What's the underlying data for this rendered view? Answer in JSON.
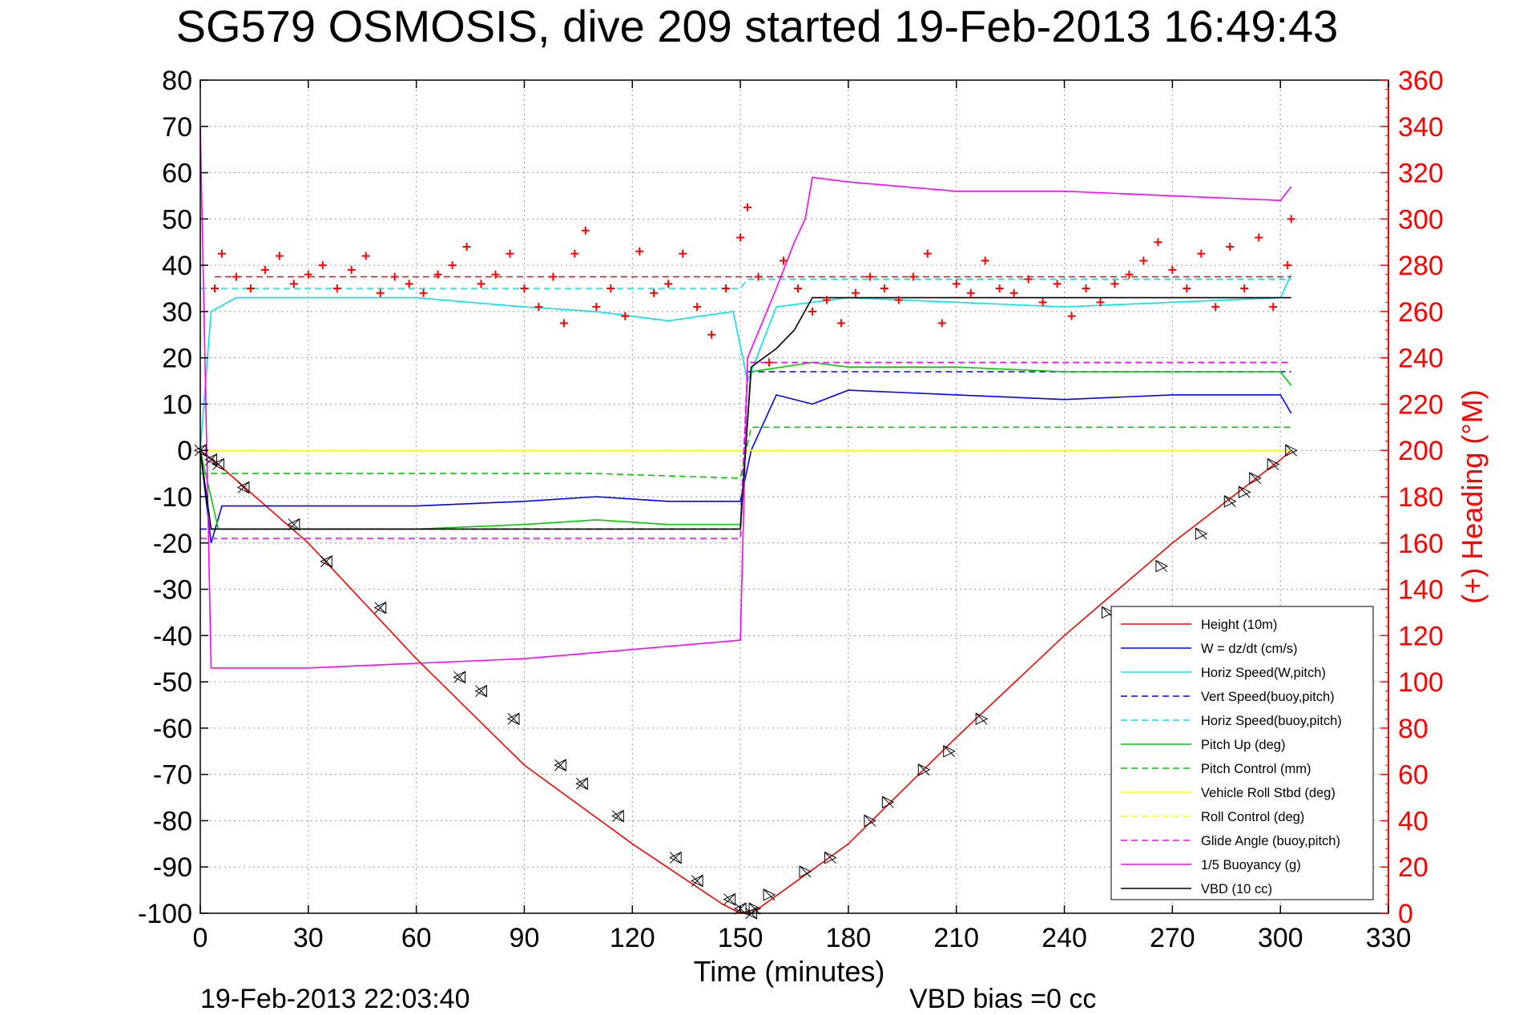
{
  "title": "SG579 OSMOSIS, dive 209 started 19-Feb-2013 16:49:43",
  "footer": {
    "timestamp": "19-Feb-2013 22:03:40",
    "vbd_bias": "VBD bias =0 cc"
  },
  "chart_data": {
    "type": "line",
    "title": "SG579 OSMOSIS, dive 209 started 19-Feb-2013 16:49:43",
    "xlabel": "Time (minutes)",
    "ylabel_left": "",
    "ylabel_right": "(+) Heading (°M)",
    "xlim": [
      0,
      330
    ],
    "ylim_left": [
      -100,
      80
    ],
    "ylim_right": [
      0,
      360
    ],
    "xticks": [
      "0",
      "30",
      "60",
      "90",
      "120",
      "150",
      "180",
      "210",
      "240",
      "270",
      "300",
      "330"
    ],
    "yticks_left": [
      "80",
      "70",
      "60",
      "50",
      "40",
      "30",
      "20",
      "10",
      "0",
      "-10",
      "-20",
      "-30",
      "-40",
      "-50",
      "-60",
      "-70",
      "-80",
      "-90",
      "-100"
    ],
    "yticks_right": [
      "360",
      "340",
      "320",
      "300",
      "280",
      "260",
      "240",
      "220",
      "200",
      "180",
      "160",
      "140",
      "120",
      "100",
      "80",
      "60",
      "40",
      "20",
      "0"
    ],
    "grid": true,
    "legend_position": "lower-right",
    "series": [
      {
        "name": "Height (10m)",
        "color": "#ff0000",
        "style": "solid",
        "x": [
          0,
          5,
          30,
          60,
          90,
          120,
          145,
          150,
          155,
          180,
          210,
          240,
          270,
          300,
          303
        ],
        "y": [
          0,
          -3,
          -20,
          -45,
          -68,
          -85,
          -98,
          -100,
          -99,
          -85,
          -62,
          -40,
          -20,
          -2,
          0
        ]
      },
      {
        "name": "W = dz/dt (cm/s)",
        "color": "#0000ff",
        "style": "solid",
        "x": [
          0,
          3,
          6,
          30,
          60,
          90,
          110,
          130,
          150,
          153,
          160,
          170,
          180,
          210,
          240,
          270,
          300,
          303
        ],
        "y": [
          0,
          -20,
          -12,
          -12,
          -12,
          -11,
          -10,
          -11,
          -11,
          0,
          12,
          10,
          13,
          12,
          11,
          12,
          12,
          8
        ]
      },
      {
        "name": "Horiz Speed(W,pitch)",
        "color": "#00e5e5",
        "style": "solid",
        "x": [
          0,
          3,
          10,
          30,
          60,
          90,
          110,
          130,
          148,
          152,
          160,
          170,
          180,
          210,
          240,
          270,
          300,
          303
        ],
        "y": [
          0,
          30,
          33,
          33,
          33,
          31,
          30,
          28,
          30,
          15,
          31,
          32,
          33,
          32,
          31,
          32,
          33,
          38
        ]
      },
      {
        "name": "Vert Speed(buoy,pitch)",
        "color": "#0000ff",
        "style": "dashed",
        "x": [
          0,
          5,
          150,
          152,
          303
        ],
        "y": [
          -17,
          -17,
          -17,
          17,
          17
        ]
      },
      {
        "name": "Horiz Speed(buoy,pitch)",
        "color": "#00e5e5",
        "style": "dashed",
        "x": [
          0,
          5,
          150,
          152,
          303
        ],
        "y": [
          35,
          35,
          35,
          37,
          37
        ]
      },
      {
        "name": "Pitch Up (deg)",
        "color": "#00cc00",
        "style": "solid",
        "x": [
          0,
          5,
          30,
          60,
          90,
          110,
          130,
          150,
          153,
          170,
          180,
          210,
          240,
          270,
          300,
          303
        ],
        "y": [
          0,
          -17,
          -17,
          -17,
          -16,
          -15,
          -16,
          -16,
          17,
          19,
          18,
          18,
          17,
          17,
          17,
          14
        ]
      },
      {
        "name": "Pitch Control (mm)",
        "color": "#00cc00",
        "style": "dashed",
        "x": [
          0,
          5,
          30,
          90,
          110,
          150,
          153,
          170,
          303
        ],
        "y": [
          -5,
          -5,
          -5,
          -5,
          -5,
          -6,
          5,
          5,
          5
        ]
      },
      {
        "name": "Vehicle Roll Stbd (deg)",
        "color": "#ffff00",
        "style": "solid",
        "x": [
          0,
          5,
          150,
          153,
          303
        ],
        "y": [
          0,
          0,
          0,
          0,
          0
        ]
      },
      {
        "name": "Roll Control (deg)",
        "color": "#ffff00",
        "style": "dashed",
        "x": [
          0,
          303
        ],
        "y": [
          0,
          0
        ]
      },
      {
        "name": "Glide Angle (buoy,pitch)",
        "color": "#ff00ff",
        "style": "dashed",
        "x": [
          0,
          5,
          150,
          152,
          303
        ],
        "y": [
          -19,
          -19,
          -19,
          19,
          19
        ]
      },
      {
        "name": "1/5 Buoyancy (g)",
        "color": "#ff00ff",
        "style": "solid",
        "x": [
          0,
          3,
          30,
          60,
          90,
          120,
          150,
          152,
          160,
          165,
          168,
          170,
          180,
          210,
          240,
          270,
          300,
          303
        ],
        "y": [
          70,
          -47,
          -47,
          -46,
          -45,
          -43,
          -41,
          20,
          35,
          45,
          50,
          59,
          58,
          56,
          56,
          55,
          54,
          57
        ]
      },
      {
        "name": "VBD (10 cc)",
        "color": "#000000",
        "style": "solid",
        "x": [
          0,
          3,
          150,
          153,
          160,
          165,
          170,
          303
        ],
        "y": [
          0,
          -17,
          -17,
          18,
          22,
          26,
          33,
          33
        ]
      }
    ],
    "heading": {
      "name": "(+) Heading",
      "color": "#ff0000",
      "marker": "+",
      "mean": 275,
      "x": [
        4,
        6,
        10,
        14,
        18,
        22,
        26,
        30,
        34,
        38,
        42,
        46,
        50,
        54,
        58,
        62,
        66,
        70,
        74,
        78,
        82,
        86,
        90,
        94,
        98,
        101,
        104,
        107,
        110,
        114,
        118,
        122,
        126,
        130,
        134,
        138,
        142,
        146,
        150,
        152,
        155,
        158,
        162,
        166,
        170,
        174,
        178,
        182,
        186,
        190,
        194,
        198,
        202,
        206,
        210,
        214,
        218,
        222,
        226,
        230,
        234,
        238,
        242,
        246,
        250,
        254,
        258,
        262,
        266,
        270,
        274,
        278,
        282,
        286,
        290,
        294,
        298,
        302,
        303
      ],
      "y": [
        270,
        285,
        275,
        270,
        278,
        284,
        272,
        276,
        280,
        270,
        278,
        284,
        268,
        275,
        272,
        268,
        276,
        280,
        288,
        272,
        276,
        285,
        270,
        262,
        275,
        255,
        285,
        295,
        262,
        270,
        258,
        286,
        268,
        272,
        285,
        262,
        250,
        270,
        292,
        305,
        275,
        238,
        282,
        270,
        260,
        265,
        255,
        268,
        275,
        270,
        265,
        275,
        285,
        255,
        272,
        268,
        282,
        270,
        268,
        274,
        264,
        272,
        258,
        270,
        264,
        272,
        276,
        282,
        290,
        278,
        270,
        285,
        262,
        288,
        270,
        292,
        262,
        280,
        300
      ]
    },
    "markers": {
      "down_x": [
        0,
        3,
        5,
        12,
        26,
        35,
        50,
        72,
        78,
        87,
        100,
        106,
        116,
        132,
        138,
        147,
        150,
        153
      ],
      "down_y": [
        0,
        -2,
        -3,
        -8,
        -16,
        -24,
        -34,
        -49,
        -52,
        -58,
        -68,
        -72,
        -79,
        -88,
        -93,
        -97,
        -99,
        -100
      ],
      "up_x": [
        154,
        158,
        168,
        175,
        186,
        191,
        201,
        208,
        217,
        252,
        267,
        278,
        286,
        290,
        293,
        298,
        303
      ],
      "up_y": [
        -99,
        -96,
        -91,
        -88,
        -80,
        -76,
        -69,
        -65,
        -58,
        -35,
        -25,
        -18,
        -11,
        -9,
        -6,
        -3,
        0
      ]
    }
  }
}
